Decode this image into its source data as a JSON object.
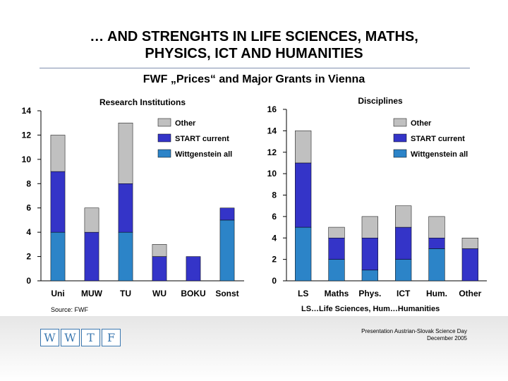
{
  "slide": {
    "title_line1": "… AND STRENGHTS IN LIFE SCIENCES, MATHS,",
    "title_line2": "PHYSICS, ICT AND HUMANITIES",
    "subtitle": "FWF „Prices“ and Major Grants in Vienna",
    "source": "Source: FWF",
    "note": "LS…Life Sciences, Hum…Humanities",
    "footer_line1": "Presentation Austrian-Slovak Science Day",
    "footer_line2": "December 2005",
    "logo_letters": [
      "W",
      "W",
      "T",
      "F"
    ]
  },
  "colors": {
    "other": "#c0c0c0",
    "start_current": "#3434c8",
    "wittgenstein_all": "#2c84c8",
    "logo": "#3b78b0"
  },
  "chart_data": [
    {
      "type": "bar",
      "stacked": true,
      "title": "Research Institutions",
      "categories": [
        "Uni",
        "MUW",
        "TU",
        "WU",
        "BOKU",
        "Sonst"
      ],
      "series": [
        {
          "name": "Wittgenstein all",
          "values": [
            4,
            0,
            4,
            0,
            0,
            5
          ]
        },
        {
          "name": "START current",
          "values": [
            5,
            4,
            4,
            2,
            2,
            1
          ]
        },
        {
          "name": "Other",
          "values": [
            3,
            2,
            5,
            1,
            0,
            0
          ]
        }
      ],
      "ylim": [
        0,
        14
      ],
      "yticks": [
        0,
        2,
        4,
        6,
        8,
        10,
        12,
        14
      ],
      "legend": "top-right",
      "grid": false
    },
    {
      "type": "bar",
      "stacked": true,
      "title": "Disciplines",
      "categories": [
        "LS",
        "Maths",
        "Phys.",
        "ICT",
        "Hum.",
        "Other"
      ],
      "series": [
        {
          "name": "Wittgenstein all",
          "values": [
            5,
            2,
            1,
            2,
            3,
            0
          ]
        },
        {
          "name": "START current",
          "values": [
            6,
            2,
            3,
            3,
            1,
            3
          ]
        },
        {
          "name": "Other",
          "values": [
            3,
            1,
            2,
            2,
            2,
            1
          ]
        }
      ],
      "ylim": [
        0,
        16
      ],
      "yticks": [
        0,
        2,
        4,
        6,
        8,
        10,
        12,
        14,
        16
      ],
      "legend": "top-right",
      "grid": false
    }
  ]
}
